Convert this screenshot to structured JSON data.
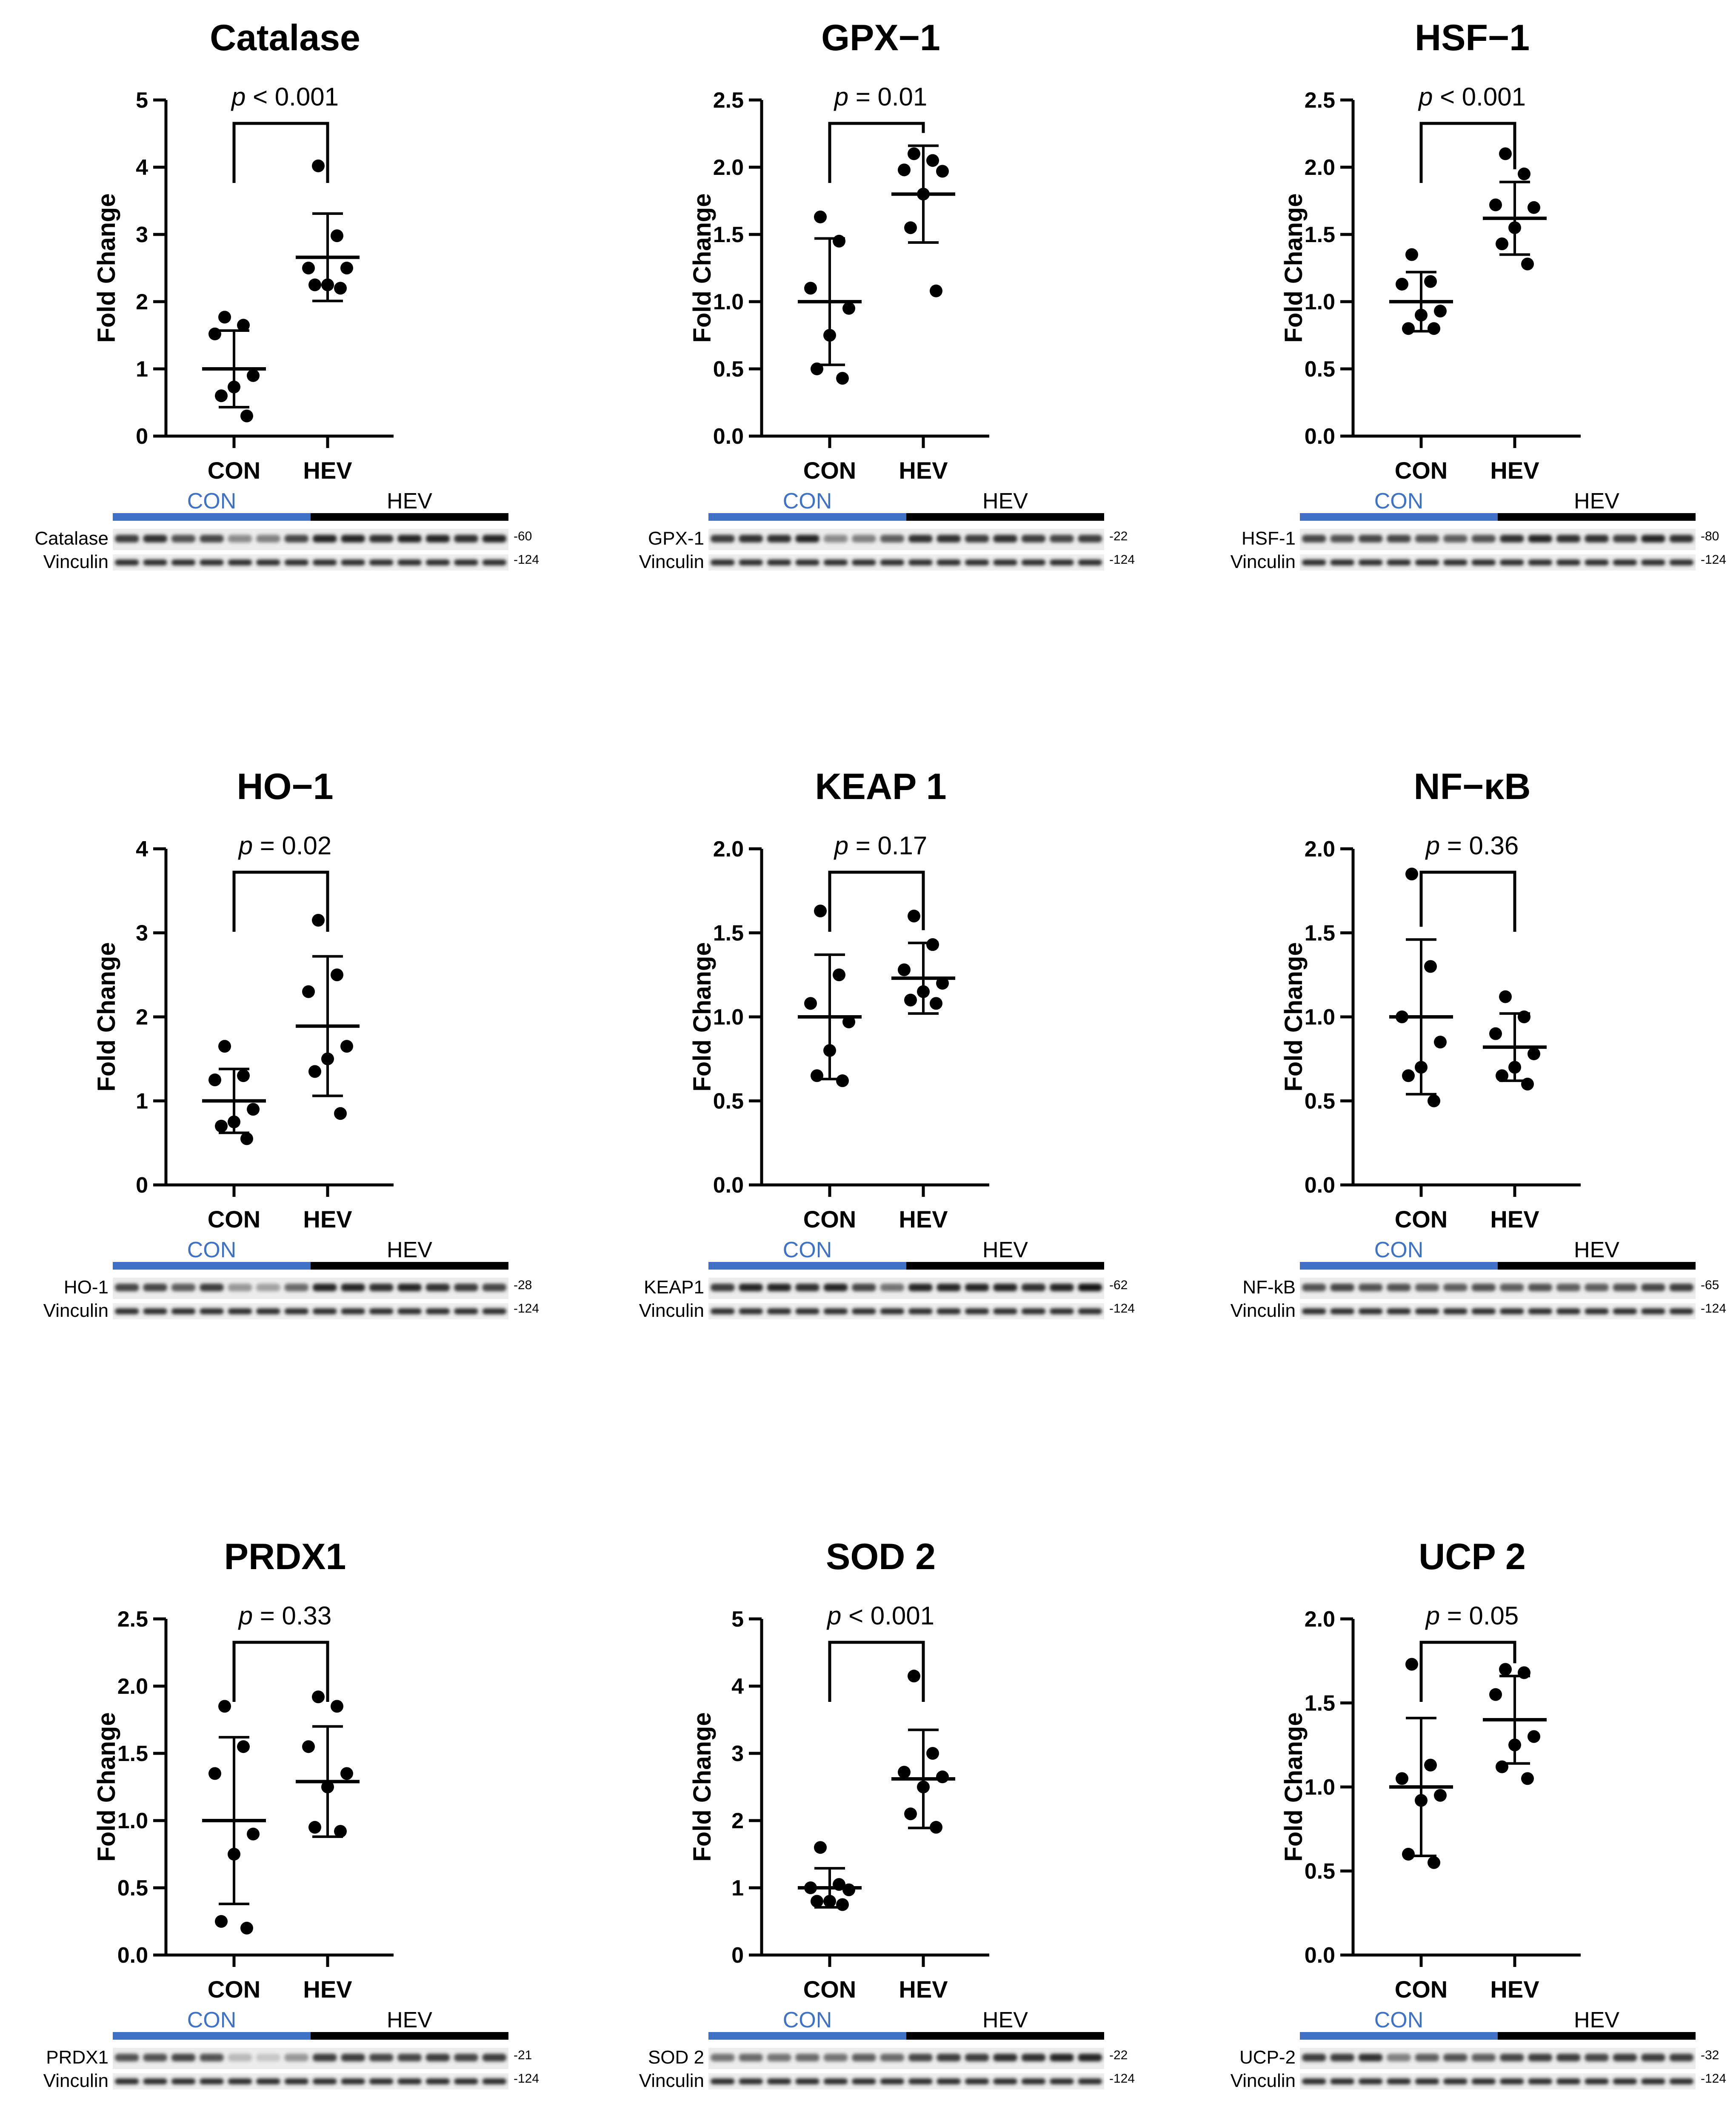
{
  "figure": {
    "group_labels": [
      "CON",
      "HEV"
    ],
    "ylabel": "Fold Change",
    "p_prefix": "p"
  },
  "chart_data": [
    {
      "type": "scatter",
      "title": "Catalase",
      "p_text": " < 0.001",
      "ylim": [
        0,
        5
      ],
      "yticks": [
        "0",
        "1",
        "2",
        "3",
        "4",
        "5"
      ],
      "categories": [
        "CON",
        "HEV"
      ],
      "series": [
        {
          "name": "CON",
          "values": [
            1.77,
            1.65,
            1.52,
            0.9,
            0.73,
            0.6,
            0.3
          ],
          "mean": 1.0,
          "sd": 0.57
        },
        {
          "name": "HEV",
          "values": [
            4.02,
            2.98,
            2.5,
            2.5,
            2.25,
            2.25,
            2.2
          ],
          "mean": 2.66,
          "sd": 0.65
        }
      ],
      "blot": {
        "protein": "Catalase",
        "protein_kda": "-60",
        "loading": "Vinculin",
        "loading_kda": "-124",
        "con_lanes": [
          0.85,
          0.9,
          0.75,
          0.8,
          0.5,
          0.55,
          0.8
        ],
        "hev_lanes": [
          0.95,
          0.95,
          0.9,
          0.95,
          0.95,
          0.9,
          0.95
        ]
      }
    },
    {
      "type": "scatter",
      "title": "GPX−1",
      "p_text": " = 0.01",
      "ylim": [
        0,
        2.5
      ],
      "yticks": [
        "0.0",
        "0.5",
        "1.0",
        "1.5",
        "2.0",
        "2.5"
      ],
      "categories": [
        "CON",
        "HEV"
      ],
      "series": [
        {
          "name": "CON",
          "values": [
            1.63,
            1.45,
            1.1,
            0.95,
            0.75,
            0.5,
            0.43
          ],
          "mean": 1.0,
          "sd": 0.47
        },
        {
          "name": "HEV",
          "values": [
            2.1,
            2.05,
            1.98,
            1.97,
            1.8,
            1.55,
            1.08
          ],
          "mean": 1.8,
          "sd": 0.36
        }
      ],
      "blot": {
        "protein": "GPX-1",
        "protein_kda": "-22",
        "loading": "Vinculin",
        "loading_kda": "-124",
        "con_lanes": [
          0.85,
          0.9,
          0.9,
          0.95,
          0.5,
          0.55,
          0.7
        ],
        "hev_lanes": [
          0.9,
          0.9,
          0.85,
          0.9,
          0.85,
          0.8,
          0.85
        ]
      }
    },
    {
      "type": "scatter",
      "title": "HSF−1",
      "p_text": " < 0.001",
      "ylim": [
        0,
        2.5
      ],
      "yticks": [
        "0.0",
        "0.5",
        "1.0",
        "1.5",
        "2.0",
        "2.5"
      ],
      "categories": [
        "CON",
        "HEV"
      ],
      "series": [
        {
          "name": "CON",
          "values": [
            1.35,
            1.15,
            1.13,
            0.93,
            0.9,
            0.8,
            0.8
          ],
          "mean": 1.0,
          "sd": 0.22
        },
        {
          "name": "HEV",
          "values": [
            2.1,
            1.95,
            1.72,
            1.7,
            1.55,
            1.43,
            1.28
          ],
          "mean": 1.62,
          "sd": 0.27
        }
      ],
      "blot": {
        "protein": "HSF-1",
        "protein_kda": "-80",
        "loading": "Vinculin",
        "loading_kda": "-124",
        "con_lanes": [
          0.8,
          0.75,
          0.8,
          0.8,
          0.75,
          0.7,
          0.75
        ],
        "hev_lanes": [
          0.9,
          0.95,
          0.9,
          0.9,
          0.85,
          0.95,
          0.9
        ]
      }
    },
    {
      "type": "scatter",
      "title": "HO−1",
      "p_text": " = 0.02",
      "ylim": [
        0,
        4
      ],
      "yticks": [
        "0",
        "1",
        "2",
        "3",
        "4"
      ],
      "categories": [
        "CON",
        "HEV"
      ],
      "series": [
        {
          "name": "CON",
          "values": [
            1.65,
            1.3,
            1.25,
            0.9,
            0.75,
            0.7,
            0.55
          ],
          "mean": 1.0,
          "sd": 0.38
        },
        {
          "name": "HEV",
          "values": [
            3.15,
            2.5,
            2.3,
            1.65,
            1.5,
            1.35,
            0.85
          ],
          "mean": 1.89,
          "sd": 0.83
        }
      ],
      "blot": {
        "protein": "HO-1",
        "protein_kda": "-28",
        "loading": "Vinculin",
        "loading_kda": "-124",
        "con_lanes": [
          0.8,
          0.8,
          0.7,
          0.85,
          0.45,
          0.4,
          0.65
        ],
        "hev_lanes": [
          0.95,
          0.95,
          0.9,
          0.95,
          0.9,
          0.85,
          0.8
        ]
      }
    },
    {
      "type": "scatter",
      "title": "KEAP 1",
      "p_text": " = 0.17",
      "ylim": [
        0,
        2
      ],
      "yticks": [
        "0.0",
        "0.5",
        "1.0",
        "1.5",
        "2.0"
      ],
      "categories": [
        "CON",
        "HEV"
      ],
      "series": [
        {
          "name": "CON",
          "values": [
            1.63,
            1.25,
            1.08,
            0.97,
            0.8,
            0.65,
            0.62
          ],
          "mean": 1.0,
          "sd": 0.37
        },
        {
          "name": "HEV",
          "values": [
            1.6,
            1.43,
            1.28,
            1.2,
            1.15,
            1.1,
            1.08
          ],
          "mean": 1.23,
          "sd": 0.21
        }
      ],
      "blot": {
        "protein": "KEAP1",
        "protein_kda": "-62",
        "loading": "Vinculin",
        "loading_kda": "-124",
        "con_lanes": [
          0.85,
          0.95,
          0.95,
          0.9,
          0.95,
          0.8,
          0.6
        ],
        "hev_lanes": [
          0.95,
          0.95,
          0.95,
          0.95,
          0.9,
          0.95,
          1.0
        ]
      }
    },
    {
      "type": "scatter",
      "title": "NF−κB",
      "p_text": " = 0.36",
      "ylim": [
        0,
        2
      ],
      "yticks": [
        "0.0",
        "0.5",
        "1.0",
        "1.5",
        "2.0"
      ],
      "categories": [
        "CON",
        "HEV"
      ],
      "series": [
        {
          "name": "CON",
          "values": [
            1.85,
            1.3,
            1.0,
            0.85,
            0.7,
            0.65,
            0.5
          ],
          "mean": 1.0,
          "sd": 0.46
        },
        {
          "name": "HEV",
          "values": [
            1.12,
            1.0,
            0.9,
            0.78,
            0.7,
            0.65,
            0.6
          ],
          "mean": 0.82,
          "sd": 0.2
        }
      ],
      "blot": {
        "protein": "NF-kB",
        "protein_kda": "-65",
        "loading": "Vinculin",
        "loading_kda": "-124",
        "con_lanes": [
          0.75,
          0.8,
          0.75,
          0.75,
          0.7,
          0.7,
          0.75
        ],
        "hev_lanes": [
          0.7,
          0.75,
          0.7,
          0.7,
          0.75,
          0.8,
          0.85
        ]
      }
    },
    {
      "type": "scatter",
      "title": "PRDX1",
      "p_text": " = 0.33",
      "ylim": [
        0,
        2.5
      ],
      "yticks": [
        "0.0",
        "0.5",
        "1.0",
        "1.5",
        "2.0",
        "2.5"
      ],
      "categories": [
        "CON",
        "HEV"
      ],
      "series": [
        {
          "name": "CON",
          "values": [
            1.85,
            1.55,
            1.35,
            0.9,
            0.75,
            0.25,
            0.2
          ],
          "mean": 1.0,
          "sd": 0.62
        },
        {
          "name": "HEV",
          "values": [
            1.92,
            1.85,
            1.55,
            1.35,
            1.25,
            0.95,
            0.92
          ],
          "mean": 1.29,
          "sd": 0.41
        }
      ],
      "blot": {
        "protein": "PRDX1",
        "protein_kda": "-21",
        "loading": "Vinculin",
        "loading_kda": "-124",
        "con_lanes": [
          0.75,
          0.75,
          0.8,
          0.75,
          0.3,
          0.25,
          0.45
        ],
        "hev_lanes": [
          0.85,
          0.85,
          0.8,
          0.8,
          0.85,
          0.8,
          0.85
        ]
      }
    },
    {
      "type": "scatter",
      "title": "SOD 2",
      "p_text": " < 0.001",
      "ylim": [
        0,
        5
      ],
      "yticks": [
        "0",
        "1",
        "2",
        "3",
        "4",
        "5"
      ],
      "categories": [
        "CON",
        "HEV"
      ],
      "series": [
        {
          "name": "CON",
          "values": [
            1.6,
            1.05,
            1.0,
            0.97,
            0.8,
            0.8,
            0.75
          ],
          "mean": 1.0,
          "sd": 0.29
        },
        {
          "name": "HEV",
          "values": [
            4.15,
            3.0,
            2.72,
            2.65,
            2.5,
            2.1,
            1.9
          ],
          "mean": 2.62,
          "sd": 0.73
        }
      ],
      "blot": {
        "protein": "SOD 2",
        "protein_kda": "-22",
        "loading": "Vinculin",
        "loading_kda": "-124",
        "con_lanes": [
          0.6,
          0.65,
          0.6,
          0.65,
          0.6,
          0.7,
          0.65
        ],
        "hev_lanes": [
          0.8,
          0.85,
          0.85,
          0.9,
          0.9,
          0.95,
          0.95
        ]
      }
    },
    {
      "type": "scatter",
      "title": "UCP 2",
      "p_text": " = 0.05",
      "ylim": [
        0,
        2
      ],
      "yticks": [
        "0.0",
        "0.5",
        "1.0",
        "1.5",
        "2.0"
      ],
      "categories": [
        "CON",
        "HEV"
      ],
      "series": [
        {
          "name": "CON",
          "values": [
            1.73,
            1.13,
            1.05,
            0.95,
            0.92,
            0.6,
            0.55
          ],
          "mean": 1.0,
          "sd": 0.41
        },
        {
          "name": "HEV",
          "values": [
            1.7,
            1.68,
            1.55,
            1.3,
            1.25,
            1.12,
            1.05
          ],
          "mean": 1.4,
          "sd": 0.26
        }
      ],
      "blot": {
        "protein": "UCP-2",
        "protein_kda": "-32",
        "loading": "Vinculin",
        "loading_kda": "-124",
        "con_lanes": [
          0.85,
          0.85,
          0.9,
          0.55,
          0.7,
          0.75,
          0.7
        ],
        "hev_lanes": [
          0.8,
          0.85,
          0.85,
          0.8,
          0.85,
          0.85,
          0.85
        ]
      }
    }
  ]
}
